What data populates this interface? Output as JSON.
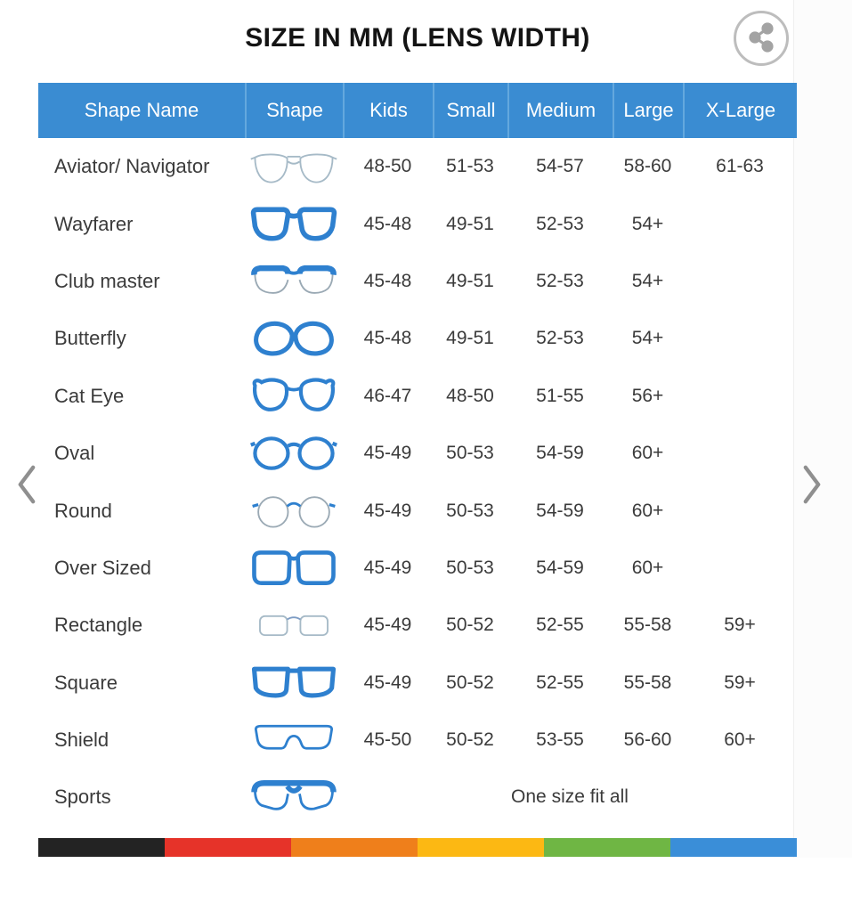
{
  "page": {
    "title": "SIZE IN MM (LENS WIDTH)"
  },
  "table": {
    "headers": [
      "Shape Name",
      "Shape",
      "Kids",
      "Small",
      "Medium",
      "Large",
      "X-Large"
    ],
    "rows": [
      {
        "name": "Aviator/ Navigator",
        "icon": "aviator-glasses-icon",
        "kids": "48-50",
        "small": "51-53",
        "medium": "54-57",
        "large": "58-60",
        "xlarge": "61-63"
      },
      {
        "name": "Wayfarer",
        "icon": "wayfarer-glasses-icon",
        "kids": "45-48",
        "small": "49-51",
        "medium": "52-53",
        "large": "54+",
        "xlarge": ""
      },
      {
        "name": "Club master",
        "icon": "clubmaster-glasses-icon",
        "kids": "45-48",
        "small": "49-51",
        "medium": "52-53",
        "large": "54+",
        "xlarge": ""
      },
      {
        "name": "Butterfly",
        "icon": "butterfly-glasses-icon",
        "kids": "45-48",
        "small": "49-51",
        "medium": "52-53",
        "large": "54+",
        "xlarge": ""
      },
      {
        "name": "Cat Eye",
        "icon": "cat-eye-glasses-icon",
        "kids": "46-47",
        "small": "48-50",
        "medium": "51-55",
        "large": "56+",
        "xlarge": ""
      },
      {
        "name": "Oval",
        "icon": "oval-glasses-icon",
        "kids": "45-49",
        "small": "50-53",
        "medium": "54-59",
        "large": "60+",
        "xlarge": ""
      },
      {
        "name": "Round",
        "icon": "round-glasses-icon",
        "kids": "45-49",
        "small": "50-53",
        "medium": "54-59",
        "large": "60+",
        "xlarge": ""
      },
      {
        "name": "Over Sized",
        "icon": "oversized-glasses-icon",
        "kids": "45-49",
        "small": "50-53",
        "medium": "54-59",
        "large": "60+",
        "xlarge": ""
      },
      {
        "name": "Rectangle",
        "icon": "rectangle-glasses-icon",
        "kids": "45-49",
        "small": "50-52",
        "medium": "52-55",
        "large": "55-58",
        "xlarge": "59+"
      },
      {
        "name": "Square",
        "icon": "square-glasses-icon",
        "kids": "45-49",
        "small": "50-52",
        "medium": "52-55",
        "large": "55-58",
        "xlarge": "59+"
      },
      {
        "name": "Shield",
        "icon": "shield-glasses-icon",
        "kids": "45-50",
        "small": "50-52",
        "medium": "53-55",
        "large": "56-60",
        "xlarge": "60+"
      },
      {
        "name": "Sports",
        "icon": "sports-glasses-icon",
        "span_text": "One size fit all"
      }
    ]
  },
  "colors": {
    "header_bg": "#3a8cd2",
    "header_divider": "#63a8de",
    "frame_blue": "#2e80cf",
    "frame_light": "#a6bac7",
    "stripe": [
      "#232323",
      "#e63329",
      "#ef7f1b",
      "#fcb813",
      "#6fb644",
      "#3a8ed8"
    ]
  }
}
